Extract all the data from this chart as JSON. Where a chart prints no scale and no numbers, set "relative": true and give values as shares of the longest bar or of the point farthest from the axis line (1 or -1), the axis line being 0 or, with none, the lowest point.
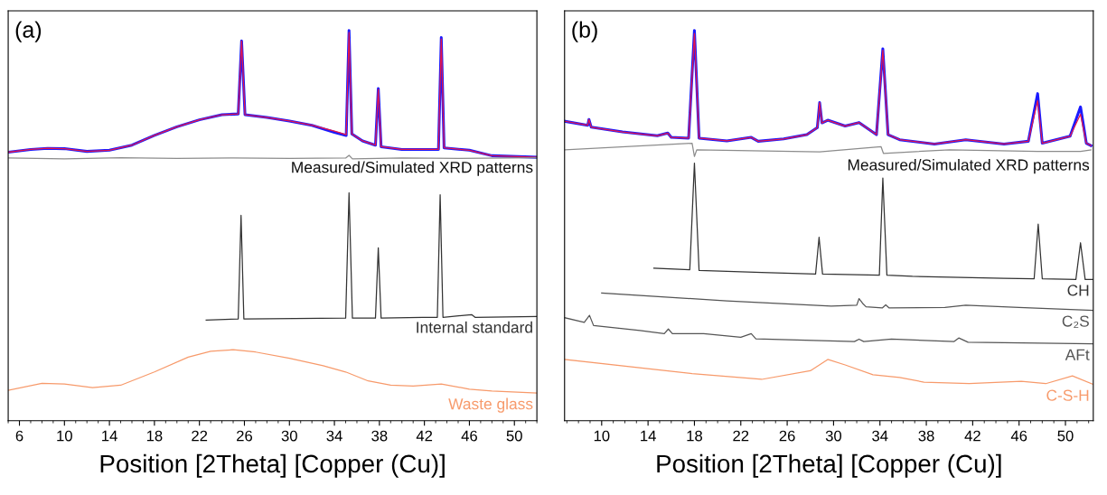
{
  "chart_data": [
    {
      "type": "line",
      "title": "(a)",
      "xlabel": "Position [2Theta] [Copper (Cu)]",
      "relative": true,
      "xlim": [
        5,
        52
      ],
      "xticks": [
        6,
        10,
        14,
        18,
        22,
        26,
        30,
        34,
        38,
        42,
        46,
        50
      ],
      "tick_labels": "x",
      "grid": false,
      "legend": false,
      "annotations": [
        "Measured/Simulated XRD patterns"
      ],
      "series": [
        {
          "color": "#1a1aff",
          "x": [
            5,
            7,
            8.5,
            10,
            12,
            14,
            16,
            18,
            20,
            22,
            24,
            25.45,
            25.75,
            26.05,
            28,
            30,
            32,
            34,
            35.05,
            35.3,
            35.55,
            36.5,
            37.65,
            37.9,
            38.15,
            40,
            43.25,
            43.5,
            43.75,
            46,
            48,
            52
          ],
          "values": [
            0.688,
            0.695,
            0.698,
            0.697,
            0.69,
            0.693,
            0.706,
            0.731,
            0.753,
            0.771,
            0.784,
            0.786,
            0.973,
            0.784,
            0.777,
            0.768,
            0.757,
            0.739,
            0.731,
            1.0,
            0.735,
            0.717,
            0.706,
            0.851,
            0.702,
            0.695,
            0.695,
            0.982,
            0.699,
            0.693,
            0.679,
            0.675
          ]
        },
        {
          "color": "#e8174a",
          "x": [
            5,
            7,
            8.5,
            10,
            12,
            14,
            16,
            18,
            20,
            22,
            24,
            25.45,
            25.75,
            26.05,
            28,
            30,
            32,
            34,
            35.05,
            35.3,
            35.55,
            36.5,
            37.65,
            37.9,
            38.15,
            40,
            43.25,
            43.5,
            43.75,
            46,
            48,
            52
          ],
          "values": [
            0.688,
            0.695,
            0.698,
            0.697,
            0.69,
            0.693,
            0.706,
            0.731,
            0.753,
            0.771,
            0.784,
            0.786,
            0.973,
            0.784,
            0.777,
            0.768,
            0.757,
            0.742,
            0.733,
            0.995,
            0.735,
            0.717,
            0.706,
            0.849,
            0.702,
            0.695,
            0.695,
            0.978,
            0.699,
            0.693,
            0.679,
            0.675
          ]
        },
        {
          "color": "#8c8c8c",
          "x": [
            5,
            10,
            15,
            20,
            25,
            30,
            35,
            35.3,
            35.6,
            40,
            45,
            52
          ],
          "values": [
            0.673,
            0.671,
            0.674,
            0.672,
            0.673,
            0.672,
            0.673,
            0.68,
            0.671,
            0.673,
            0.672,
            0.674
          ]
        },
        {
          "name": "Internal standard",
          "color": "#333333",
          "x": [
            22.6,
            25.45,
            25.7,
            25.95,
            35.0,
            35.3,
            35.6,
            37.65,
            37.9,
            38.15,
            41.8,
            43.15,
            43.4,
            43.65,
            46.2,
            46.5,
            52
          ],
          "values": [
            0.258,
            0.261,
            0.526,
            0.261,
            0.263,
            0.584,
            0.263,
            0.263,
            0.443,
            0.263,
            0.265,
            0.265,
            0.579,
            0.265,
            0.272,
            0.265,
            0.267
          ]
        },
        {
          "name": "Waste glass",
          "color": "#f79a6b",
          "x": [
            5,
            8,
            10,
            12.5,
            15,
            18,
            21,
            23,
            25,
            27,
            30,
            33,
            35,
            37,
            39,
            41,
            43.5,
            46,
            48,
            52
          ],
          "values": [
            0.078,
            0.096,
            0.094,
            0.085,
            0.091,
            0.125,
            0.163,
            0.178,
            0.182,
            0.176,
            0.16,
            0.141,
            0.125,
            0.102,
            0.091,
            0.089,
            0.094,
            0.081,
            0.076,
            0.071
          ]
        }
      ]
    },
    {
      "type": "line",
      "title": "(b)",
      "xlabel": "Position [2Theta] [Copper (Cu)]",
      "relative": true,
      "xlim": [
        6.8,
        52.4
      ],
      "xticks": [
        10,
        14,
        18,
        22,
        26,
        30,
        34,
        38,
        42,
        46,
        50
      ],
      "tick_labels": "x",
      "grid": false,
      "legend": false,
      "annotations": [
        "Measured/Simulated XRD patterns"
      ],
      "series": [
        {
          "color": "#1a1aff",
          "x": [
            6.86,
            8.8,
            8.9,
            9.1,
            11.8,
            14.8,
            15.7,
            16.0,
            17.5,
            18.0,
            18.4,
            20.8,
            22.9,
            23.5,
            25.7,
            27.7,
            28.6,
            28.8,
            29.0,
            29.5,
            31.0,
            32.2,
            33.7,
            34.25,
            34.7,
            35.7,
            38.7,
            41.4,
            44.7,
            46.8,
            47.6,
            48.0,
            50.4,
            51.3,
            51.8,
            52.2
          ],
          "values": [
            0.767,
            0.757,
            0.772,
            0.752,
            0.74,
            0.73,
            0.737,
            0.726,
            0.724,
            1.0,
            0.724,
            0.717,
            0.726,
            0.716,
            0.722,
            0.733,
            0.751,
            0.815,
            0.763,
            0.77,
            0.755,
            0.764,
            0.733,
            0.953,
            0.733,
            0.72,
            0.709,
            0.72,
            0.709,
            0.716,
            0.838,
            0.711,
            0.729,
            0.804,
            0.711,
            0.705
          ]
        },
        {
          "color": "#e8174a",
          "x": [
            6.86,
            8.8,
            8.9,
            9.1,
            11.8,
            14.8,
            15.7,
            16.0,
            17.5,
            18.0,
            18.4,
            20.8,
            22.9,
            23.5,
            25.7,
            27.7,
            28.6,
            28.8,
            29.0,
            29.5,
            31.0,
            32.2,
            33.7,
            34.25,
            34.7,
            35.7,
            38.7,
            41.4,
            44.7,
            46.8,
            47.6,
            48.0,
            50.4,
            51.3,
            51.8,
            52.2
          ],
          "values": [
            0.767,
            0.757,
            0.772,
            0.752,
            0.74,
            0.73,
            0.737,
            0.726,
            0.724,
            0.992,
            0.724,
            0.717,
            0.726,
            0.716,
            0.722,
            0.733,
            0.751,
            0.815,
            0.763,
            0.77,
            0.755,
            0.764,
            0.733,
            0.949,
            0.733,
            0.72,
            0.709,
            0.72,
            0.709,
            0.716,
            0.82,
            0.711,
            0.729,
            0.785,
            0.711,
            0.705
          ]
        },
        {
          "color": "#8c8c8c",
          "x": [
            6.86,
            17.8,
            18.0,
            18.2,
            28.8,
            34.1,
            34.3,
            40,
            47.6,
            51.3,
            52.2
          ],
          "values": [
            0.694,
            0.711,
            0.677,
            0.694,
            0.689,
            0.702,
            0.685,
            0.694,
            0.69,
            0.69,
            0.694
          ]
        },
        {
          "name": "CH",
          "color": "#333333",
          "x": [
            14.5,
            17.6,
            18.0,
            18.4,
            23.8,
            28.45,
            28.75,
            29.05,
            33.95,
            34.25,
            34.6,
            36.8,
            44.7,
            47.3,
            47.65,
            48.0,
            50.9,
            51.3,
            51.7,
            52.4
          ],
          "values": [
            0.391,
            0.387,
            0.66,
            0.385,
            0.38,
            0.376,
            0.47,
            0.376,
            0.373,
            0.622,
            0.373,
            0.37,
            0.365,
            0.364,
            0.504,
            0.364,
            0.362,
            0.456,
            0.362,
            0.362
          ]
        },
        {
          "name": "C₂S",
          "color": "#555555",
          "x": [
            10.0,
            20.8,
            29.8,
            32.0,
            32.2,
            32.5,
            32.8,
            34.2,
            34.5,
            34.8,
            39.6,
            41.4,
            46,
            52.4
          ],
          "values": [
            0.327,
            0.307,
            0.294,
            0.296,
            0.313,
            0.301,
            0.292,
            0.289,
            0.297,
            0.289,
            0.29,
            0.296,
            0.29,
            0.283
          ]
        },
        {
          "name": "AFt",
          "color": "#555555",
          "x": [
            6.8,
            8.5,
            8.95,
            9.3,
            13.3,
            15.4,
            15.75,
            16.1,
            18.8,
            22.0,
            22.9,
            23.3,
            31.8,
            32.2,
            32.6,
            35.0,
            40.4,
            40.8,
            41.6,
            52.4
          ],
          "values": [
            0.264,
            0.252,
            0.27,
            0.244,
            0.231,
            0.223,
            0.235,
            0.223,
            0.223,
            0.214,
            0.223,
            0.21,
            0.203,
            0.209,
            0.203,
            0.209,
            0.203,
            0.212,
            0.201,
            0.197
          ]
        },
        {
          "name": "C-S-H",
          "color": "#f79a6b",
          "x": [
            6.8,
            17.8,
            23.8,
            28.0,
            29.5,
            31.0,
            33.4,
            35.7,
            37.8,
            41.7,
            46.2,
            48.3,
            50.6,
            52.4
          ],
          "values": [
            0.157,
            0.121,
            0.106,
            0.128,
            0.157,
            0.143,
            0.118,
            0.111,
            0.099,
            0.095,
            0.101,
            0.095,
            0.115,
            0.093
          ]
        }
      ]
    }
  ]
}
